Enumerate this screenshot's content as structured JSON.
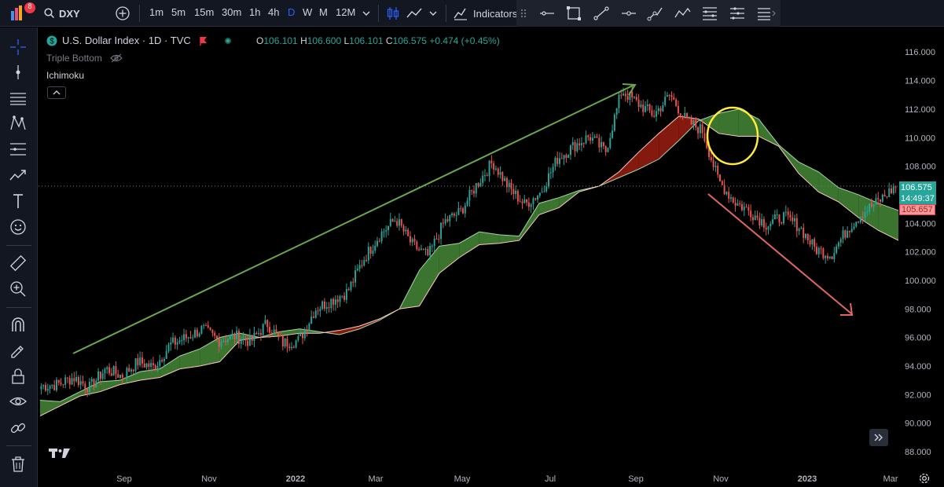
{
  "toolbar": {
    "notification_count": "8",
    "symbol": "DXY",
    "timeframes": [
      "1m",
      "5m",
      "15m",
      "30m",
      "1h",
      "4h",
      "D",
      "W",
      "M",
      "12M"
    ],
    "active_timeframe": "D",
    "indicators_label": "Indicators"
  },
  "legend": {
    "title": "U.S. Dollar Index · 1D · TVC",
    "open_label": "O",
    "open": "106.101",
    "high_label": "H",
    "high": "106.600",
    "low_label": "L",
    "low": "106.101",
    "close_label": "C",
    "close": "106.575",
    "change": "+0.474 (+0.45%)",
    "indicator_1": "Triple Bottom",
    "indicator_2": "Ichimoku"
  },
  "price_scale": {
    "current_price": "106.575",
    "countdown": "14:49:37",
    "secondary_price": "105.657"
  },
  "colors": {
    "up": "#26a69a",
    "down": "#ef5350",
    "cloud_bull": "#3d7a30",
    "cloud_bear": "#8b1a10",
    "accent": "#2962ff",
    "annotation_up": "#6aa84f",
    "annotation_down": "#e06666",
    "highlight": "#ffeb3b"
  },
  "chart_data": {
    "type": "candlestick",
    "title": "U.S. Dollar Index · 1D · TVC",
    "ylim": [
      87,
      117
    ],
    "y_ticks": [
      "88.000",
      "90.000",
      "92.000",
      "94.000",
      "96.000",
      "98.000",
      "100.000",
      "102.000",
      "104.000",
      "106.000",
      "108.000",
      "110.000",
      "112.000",
      "114.000",
      "116.000"
    ],
    "x_ticks": [
      "Sep",
      "Nov",
      "2022",
      "Mar",
      "May",
      "Jul",
      "Sep",
      "Nov",
      "2023",
      "Mar"
    ],
    "grid": false,
    "close_series": [
      92.6,
      92.7,
      93.2,
      92.5,
      93.8,
      93.3,
      94.3,
      93.9,
      95.5,
      96.0,
      96.6,
      95.8,
      96.1,
      95.7,
      97.0,
      95.6,
      95.8,
      98.0,
      98.6,
      99.2,
      101.5,
      103.2,
      104.3,
      102.5,
      101.7,
      104.1,
      104.8,
      106.7,
      108.3,
      106.5,
      105.3,
      106.2,
      108.5,
      109.4,
      110.1,
      109.0,
      113.3,
      112.4,
      111.6,
      113.0,
      111.2,
      110.5,
      107.0,
      105.5,
      104.8,
      103.9,
      104.5,
      103.8,
      102.2,
      101.8,
      103.6,
      104.8,
      105.6,
      106.6
    ],
    "ichimoku_span_a": [
      91.6,
      91.5,
      92.2,
      92.9,
      93.0,
      93.6,
      93.8,
      94.7,
      95.2,
      96.0,
      96.3,
      96.0,
      96.4,
      96.6,
      96.4,
      96.2,
      96.6,
      97.2,
      98.0,
      100.7,
      102.4,
      102.6,
      103.4,
      103.2,
      103.1,
      105.4,
      105.8,
      106.3,
      106.6,
      107.2,
      107.8,
      108.5,
      109.8,
      111.2,
      111.7,
      112.0,
      111.3,
      109.5,
      108.3,
      107.6,
      106.5,
      106.0,
      105.4,
      104.9
    ],
    "ichimoku_span_b": [
      90.5,
      91.2,
      91.9,
      92.2,
      92.7,
      93.0,
      93.2,
      93.8,
      94.0,
      94.3,
      95.8,
      96.0,
      96.1,
      96.3,
      96.3,
      96.5,
      96.8,
      97.3,
      98.0,
      98.2,
      100.5,
      101.6,
      102.5,
      102.6,
      102.8,
      104.6,
      105.1,
      106.2,
      106.6,
      107.6,
      109.0,
      110.3,
      111.5,
      111.3,
      110.3,
      110.1,
      110.1,
      109.4,
      107.5,
      106.2,
      105.5,
      104.4,
      103.5,
      102.8
    ]
  }
}
